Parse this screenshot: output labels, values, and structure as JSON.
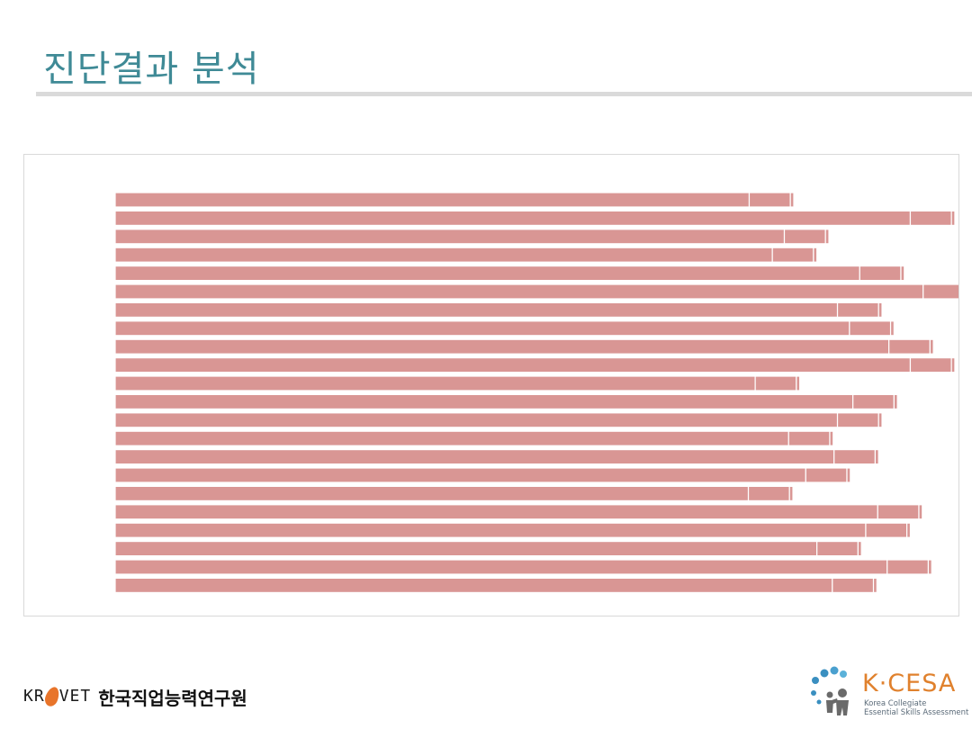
{
  "slide": {
    "title": "진단결과 분석"
  },
  "footer": {
    "krivet_text_a": "KR",
    "krivet_text_b": "VET",
    "krivet_korean": "한국직업능력연구원",
    "kcesa_name": "K·CESA",
    "kcesa_sub_1": "Korea Collegiate",
    "kcesa_sub_2": "Essential Skills Assessment"
  },
  "colors": {
    "bar": "#d99694",
    "title": "#3f8a96",
    "kcesa_orange": "#e0812d"
  },
  "chart_data": {
    "type": "bar",
    "orientation": "horizontal",
    "stacked": true,
    "grid": false,
    "legend": "none",
    "xlim": [
      0,
      100
    ],
    "categories": [
      "",
      "",
      "",
      "",
      "",
      "",
      "",
      "",
      "",
      "",
      "",
      "",
      "",
      "",
      "",
      "",
      "",
      "",
      "",
      "",
      "",
      ""
    ],
    "series": [
      {
        "values": [
          74.0,
          92.8,
          78.1,
          76.7,
          86.9,
          94.3,
          84.3,
          85.7,
          90.3,
          92.8,
          74.7,
          86.1,
          84.3,
          78.6,
          83.9,
          80.6,
          73.9,
          89.0,
          87.6,
          81.9,
          90.1,
          83.7
        ]
      },
      {
        "values": [
          4.8,
          4.8,
          4.8,
          4.8,
          4.8,
          4.8,
          4.8,
          4.8,
          4.8,
          4.8,
          4.8,
          4.8,
          4.8,
          4.8,
          4.8,
          4.8,
          4.8,
          4.8,
          4.8,
          4.8,
          4.8,
          4.8
        ]
      },
      {
        "values": [
          0.4,
          0.4,
          0.4,
          0.4,
          0.4,
          0.4,
          0.4,
          0.4,
          0.4,
          0.4,
          0.4,
          0.4,
          0.4,
          0.4,
          0.4,
          0.4,
          0.4,
          0.4,
          0.4,
          0.4,
          0.4,
          0.4
        ]
      }
    ]
  }
}
